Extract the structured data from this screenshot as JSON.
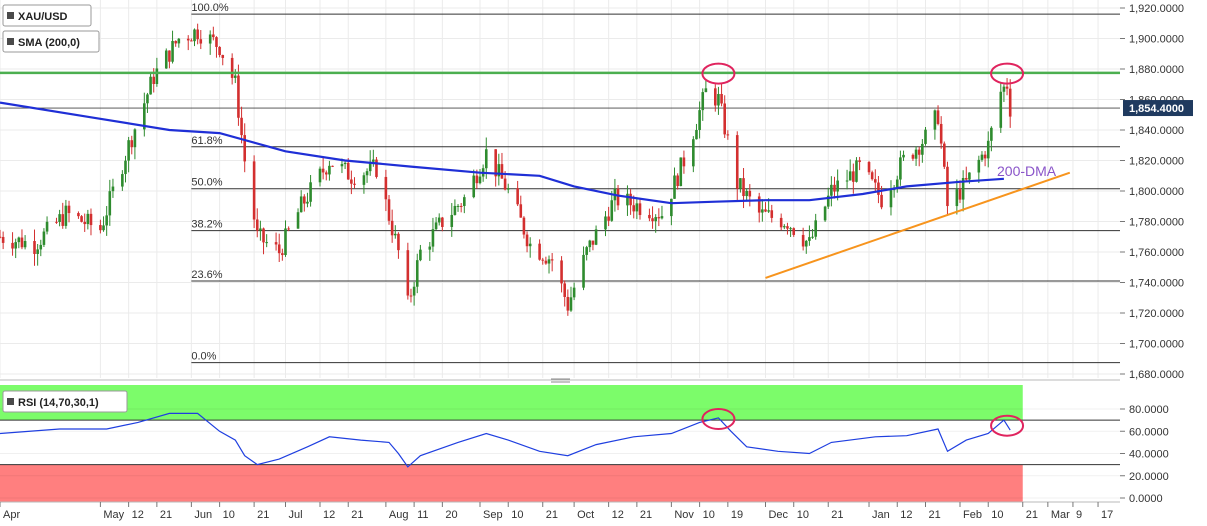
{
  "chart_data": [
    {
      "type": "candlestick",
      "symbol": "XAU/USD",
      "indicator_label": "SMA (200,0)",
      "ylim": [
        1680,
        1925
      ],
      "y_ticks": [
        "1,920.0000",
        "1,900.0000",
        "1,880.0000",
        "1,860.0000",
        "1,840.0000",
        "1,820.0000",
        "1,800.0000",
        "1,780.0000",
        "1,760.0000",
        "1,740.0000",
        "1,720.0000",
        "1,700.0000",
        "1,680.0000"
      ],
      "y_tick_values": [
        1920,
        1900,
        1880,
        1860,
        1840,
        1820,
        1800,
        1780,
        1760,
        1740,
        1720,
        1700,
        1680
      ],
      "last_price": "1,854.4000",
      "last_price_value": 1854.4,
      "resistance": 1877.5,
      "fib_levels": [
        {
          "label": "100.0%",
          "value": 1916
        },
        {
          "label": "61.8%",
          "value": 1829
        },
        {
          "label": "50.0%",
          "value": 1801.5
        },
        {
          "label": "38.2%",
          "value": 1774
        },
        {
          "label": "23.6%",
          "value": 1741
        },
        {
          "label": "0.0%",
          "value": 1687.5
        }
      ],
      "dma_label": "200-DMA",
      "sma_200": [
        {
          "date": "2021-04-01",
          "value": 1858
        },
        {
          "date": "2021-05-01",
          "value": 1848
        },
        {
          "date": "2021-05-25",
          "value": 1840
        },
        {
          "date": "2021-06-10",
          "value": 1838
        },
        {
          "date": "2021-07-01",
          "value": 1826
        },
        {
          "date": "2021-07-20",
          "value": 1820
        },
        {
          "date": "2021-08-10",
          "value": 1816
        },
        {
          "date": "2021-09-01",
          "value": 1812
        },
        {
          "date": "2021-09-20",
          "value": 1810
        },
        {
          "date": "2021-10-01",
          "value": 1803
        },
        {
          "date": "2021-10-15",
          "value": 1797
        },
        {
          "date": "2021-11-01",
          "value": 1792
        },
        {
          "date": "2021-11-15",
          "value": 1793
        },
        {
          "date": "2021-12-01",
          "value": 1794
        },
        {
          "date": "2021-12-15",
          "value": 1794
        },
        {
          "date": "2022-01-01",
          "value": 1798
        },
        {
          "date": "2022-01-15",
          "value": 1803
        },
        {
          "date": "2022-02-01",
          "value": 1806
        },
        {
          "date": "2022-02-15",
          "value": 1808
        }
      ],
      "support_trendline": [
        {
          "date": "2021-12-01",
          "value": 1743
        },
        {
          "date": "2022-03-08",
          "value": 1812
        }
      ],
      "price_path": [
        {
          "date": "2021-04-01",
          "value": 1770
        },
        {
          "date": "2021-04-12",
          "value": 1765
        },
        {
          "date": "2021-04-22",
          "value": 1785
        },
        {
          "date": "2021-05-03",
          "value": 1775
        },
        {
          "date": "2021-05-12",
          "value": 1830
        },
        {
          "date": "2021-05-20",
          "value": 1875
        },
        {
          "date": "2021-05-28",
          "value": 1900
        },
        {
          "date": "2021-06-03",
          "value": 1905
        },
        {
          "date": "2021-06-10",
          "value": 1895
        },
        {
          "date": "2021-06-15",
          "value": 1870
        },
        {
          "date": "2021-06-18",
          "value": 1820
        },
        {
          "date": "2021-06-22",
          "value": 1770
        },
        {
          "date": "2021-06-29",
          "value": 1760
        },
        {
          "date": "2021-07-06",
          "value": 1790
        },
        {
          "date": "2021-07-15",
          "value": 1820
        },
        {
          "date": "2021-07-22",
          "value": 1810
        },
        {
          "date": "2021-07-30",
          "value": 1815
        },
        {
          "date": "2021-08-06",
          "value": 1760
        },
        {
          "date": "2021-08-09",
          "value": 1725
        },
        {
          "date": "2021-08-13",
          "value": 1760
        },
        {
          "date": "2021-08-20",
          "value": 1780
        },
        {
          "date": "2021-08-27",
          "value": 1795
        },
        {
          "date": "2021-09-03",
          "value": 1825
        },
        {
          "date": "2021-09-10",
          "value": 1800
        },
        {
          "date": "2021-09-17",
          "value": 1765
        },
        {
          "date": "2021-09-24",
          "value": 1755
        },
        {
          "date": "2021-09-29",
          "value": 1725
        },
        {
          "date": "2021-10-05",
          "value": 1760
        },
        {
          "date": "2021-10-14",
          "value": 1795
        },
        {
          "date": "2021-10-22",
          "value": 1790
        },
        {
          "date": "2021-10-29",
          "value": 1785
        },
        {
          "date": "2021-11-05",
          "value": 1820
        },
        {
          "date": "2021-11-12",
          "value": 1865
        },
        {
          "date": "2021-11-16",
          "value": 1860
        },
        {
          "date": "2021-11-22",
          "value": 1805
        },
        {
          "date": "2021-11-29",
          "value": 1785
        },
        {
          "date": "2021-12-08",
          "value": 1780
        },
        {
          "date": "2021-12-15",
          "value": 1765
        },
        {
          "date": "2021-12-22",
          "value": 1800
        },
        {
          "date": "2021-12-31",
          "value": 1815
        },
        {
          "date": "2022-01-07",
          "value": 1795
        },
        {
          "date": "2022-01-14",
          "value": 1820
        },
        {
          "date": "2022-01-21",
          "value": 1835
        },
        {
          "date": "2022-01-25",
          "value": 1850
        },
        {
          "date": "2022-01-28",
          "value": 1790
        },
        {
          "date": "2022-02-03",
          "value": 1805
        },
        {
          "date": "2022-02-10",
          "value": 1830
        },
        {
          "date": "2022-02-14",
          "value": 1865
        },
        {
          "date": "2022-02-16",
          "value": 1870
        },
        {
          "date": "2022-02-17",
          "value": 1854.4
        }
      ],
      "marked_highs": [
        {
          "date": "2021-11-16",
          "value": 1877
        },
        {
          "date": "2022-02-16",
          "value": 1877
        }
      ],
      "x_ticks": [
        {
          "label": "Apr",
          "date": "2021-04-01"
        },
        {
          "label": "May",
          "date": "2021-05-03"
        },
        {
          "label": "12",
          "date": "2021-05-12"
        },
        {
          "label": "21",
          "date": "2021-05-21"
        },
        {
          "label": "Jun",
          "date": "2021-06-01"
        },
        {
          "label": "10",
          "date": "2021-06-10"
        },
        {
          "label": "21",
          "date": "2021-06-21"
        },
        {
          "label": "Jul",
          "date": "2021-07-01"
        },
        {
          "label": "12",
          "date": "2021-07-12"
        },
        {
          "label": "21",
          "date": "2021-07-21"
        },
        {
          "label": "Aug",
          "date": "2021-08-02"
        },
        {
          "label": "11",
          "date": "2021-08-11"
        },
        {
          "label": "20",
          "date": "2021-08-20"
        },
        {
          "label": "Sep",
          "date": "2021-09-01"
        },
        {
          "label": "10",
          "date": "2021-09-10"
        },
        {
          "label": "21",
          "date": "2021-09-21"
        },
        {
          "label": "Oct",
          "date": "2021-10-01"
        },
        {
          "label": "12",
          "date": "2021-10-12"
        },
        {
          "label": "21",
          "date": "2021-10-21"
        },
        {
          "label": "Nov",
          "date": "2021-11-01"
        },
        {
          "label": "10",
          "date": "2021-11-10"
        },
        {
          "label": "19",
          "date": "2021-11-19"
        },
        {
          "label": "Dec",
          "date": "2021-12-01"
        },
        {
          "label": "10",
          "date": "2021-12-10"
        },
        {
          "label": "21",
          "date": "2021-12-21"
        },
        {
          "label": "Jan",
          "date": "2022-01-03"
        },
        {
          "label": "12",
          "date": "2022-01-12"
        },
        {
          "label": "21",
          "date": "2022-01-21"
        },
        {
          "label": "Feb",
          "date": "2022-02-01"
        },
        {
          "label": "10",
          "date": "2022-02-10"
        },
        {
          "label": "21",
          "date": "2022-02-21"
        },
        {
          "label": "Mar",
          "date": "2022-03-01"
        },
        {
          "label": "9",
          "date": "2022-03-09"
        },
        {
          "label": "17",
          "date": "2022-03-17"
        }
      ],
      "x_range": [
        "2021-04-01",
        "2022-03-24"
      ]
    },
    {
      "type": "line",
      "label": "RSI (14,70,30,1)",
      "ylim": [
        0,
        90
      ],
      "overbought": 70,
      "oversold": 30,
      "y_ticks": [
        "80.0000",
        "60.0000",
        "40.0000",
        "20.0000",
        "0.0000"
      ],
      "y_tick_values": [
        80,
        60,
        40,
        20,
        0
      ],
      "values": [
        {
          "date": "2021-04-01",
          "value": 58
        },
        {
          "date": "2021-04-20",
          "value": 62
        },
        {
          "date": "2021-05-05",
          "value": 62
        },
        {
          "date": "2021-05-15",
          "value": 68
        },
        {
          "date": "2021-05-25",
          "value": 76
        },
        {
          "date": "2021-06-03",
          "value": 76
        },
        {
          "date": "2021-06-10",
          "value": 60
        },
        {
          "date": "2021-06-15",
          "value": 52
        },
        {
          "date": "2021-06-18",
          "value": 38
        },
        {
          "date": "2021-06-22",
          "value": 30
        },
        {
          "date": "2021-06-29",
          "value": 35
        },
        {
          "date": "2021-07-08",
          "value": 46
        },
        {
          "date": "2021-07-15",
          "value": 55
        },
        {
          "date": "2021-07-25",
          "value": 52
        },
        {
          "date": "2021-08-03",
          "value": 50
        },
        {
          "date": "2021-08-06",
          "value": 40
        },
        {
          "date": "2021-08-09",
          "value": 28
        },
        {
          "date": "2021-08-13",
          "value": 38
        },
        {
          "date": "2021-08-25",
          "value": 50
        },
        {
          "date": "2021-09-03",
          "value": 58
        },
        {
          "date": "2021-09-10",
          "value": 52
        },
        {
          "date": "2021-09-20",
          "value": 42
        },
        {
          "date": "2021-09-29",
          "value": 38
        },
        {
          "date": "2021-10-08",
          "value": 48
        },
        {
          "date": "2021-10-20",
          "value": 55
        },
        {
          "date": "2021-11-01",
          "value": 58
        },
        {
          "date": "2021-11-10",
          "value": 68
        },
        {
          "date": "2021-11-16",
          "value": 72
        },
        {
          "date": "2021-11-20",
          "value": 60
        },
        {
          "date": "2021-11-25",
          "value": 46
        },
        {
          "date": "2021-12-05",
          "value": 42
        },
        {
          "date": "2021-12-15",
          "value": 40
        },
        {
          "date": "2021-12-22",
          "value": 50
        },
        {
          "date": "2022-01-05",
          "value": 55
        },
        {
          "date": "2022-01-15",
          "value": 56
        },
        {
          "date": "2022-01-25",
          "value": 62
        },
        {
          "date": "2022-01-28",
          "value": 42
        },
        {
          "date": "2022-02-03",
          "value": 52
        },
        {
          "date": "2022-02-10",
          "value": 58
        },
        {
          "date": "2022-02-15",
          "value": 70
        },
        {
          "date": "2022-02-17",
          "value": 61
        }
      ],
      "marked_peaks": [
        {
          "date": "2021-11-16",
          "value": 71
        },
        {
          "date": "2022-02-16",
          "value": 65
        }
      ]
    }
  ],
  "colors": {
    "resistance": "#4caf50",
    "sma": "#1f2fd6",
    "trendline": "#f7941d",
    "bull_candle": "#2e8b2e",
    "bear_candle": "#d32f2f",
    "rsi_line": "#1f3fe0",
    "overbought_zone": "#7cfc6a",
    "oversold_zone": "#ff7f7f",
    "highlight_circle": "#e0245e",
    "dma_label": "#8a55c9",
    "price_tag": "#1f3a5f"
  }
}
